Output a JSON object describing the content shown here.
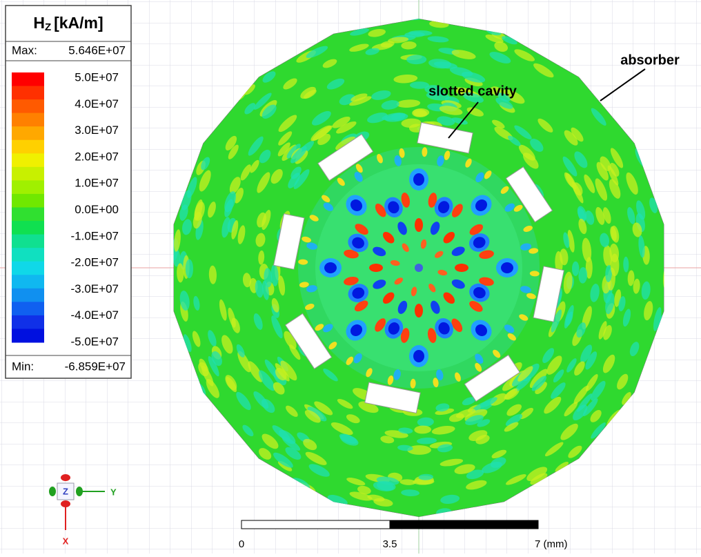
{
  "legend": {
    "title": {
      "symbol": "H",
      "subscript": "Z",
      "unit": "[kA/m]"
    },
    "max_label": "Max:",
    "max_value": "5.646E+07",
    "levels": [
      "5.0E+07",
      "4.0E+07",
      "3.0E+07",
      "2.0E+07",
      "1.0E+07",
      "0.0E+00",
      "-1.0E+07",
      "-2.0E+07",
      "-3.0E+07",
      "-4.0E+07",
      "-5.0E+07"
    ],
    "min_label": "Min:",
    "min_value": "-6.859E+07"
  },
  "annotations": {
    "cavity": "slotted cavity",
    "absorber": "absorber"
  },
  "scale_bar": {
    "labels": [
      "0",
      "3.5",
      "7 (mm)"
    ]
  },
  "triad": {
    "z": "Z",
    "y": "Y",
    "x": "X"
  }
}
